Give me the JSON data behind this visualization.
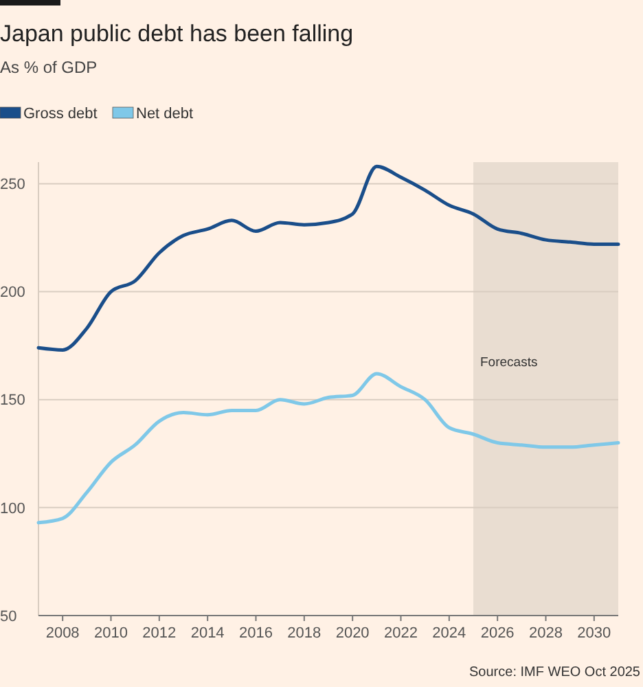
{
  "chart_data": {
    "type": "line",
    "title": "Japan public debt has been falling",
    "subtitle": "As % of GDP",
    "x": [
      2007,
      2008,
      2009,
      2010,
      2011,
      2012,
      2013,
      2014,
      2015,
      2016,
      2017,
      2018,
      2019,
      2020,
      2021,
      2022,
      2023,
      2024,
      2025,
      2026,
      2027,
      2028,
      2029,
      2030,
      2031
    ],
    "series": [
      {
        "name": "Gross debt",
        "color": "#1a4e8a",
        "values": [
          174,
          173,
          183,
          200,
          205,
          218,
          226,
          229,
          233,
          228,
          232,
          231,
          232,
          236,
          258,
          253,
          247,
          240,
          236,
          229,
          227,
          224,
          223,
          222,
          222
        ]
      },
      {
        "name": "Net debt",
        "color": "#7fc8e8",
        "values": [
          93,
          95,
          107,
          121,
          129,
          140,
          144,
          143,
          145,
          145,
          150,
          148,
          151,
          152,
          162,
          156,
          150,
          137,
          134,
          130,
          129,
          128,
          128,
          129,
          130
        ]
      }
    ],
    "xlim": [
      2007,
      2031
    ],
    "xticks": [
      2008,
      2010,
      2012,
      2014,
      2016,
      2018,
      2020,
      2022,
      2024,
      2026,
      2028,
      2030
    ],
    "ylim": [
      50,
      260
    ],
    "yticks": [
      50,
      100,
      150,
      200,
      250
    ],
    "bands": [
      {
        "axis": "x",
        "from": 2025,
        "to": 2031,
        "label": "Forecasts",
        "color": "#e9ddd1"
      }
    ],
    "grid": "y",
    "legend": "top left",
    "line_style": "solid",
    "marker": "none",
    "annotations": [
      "Source: IMF WEO Oct 2025"
    ]
  }
}
